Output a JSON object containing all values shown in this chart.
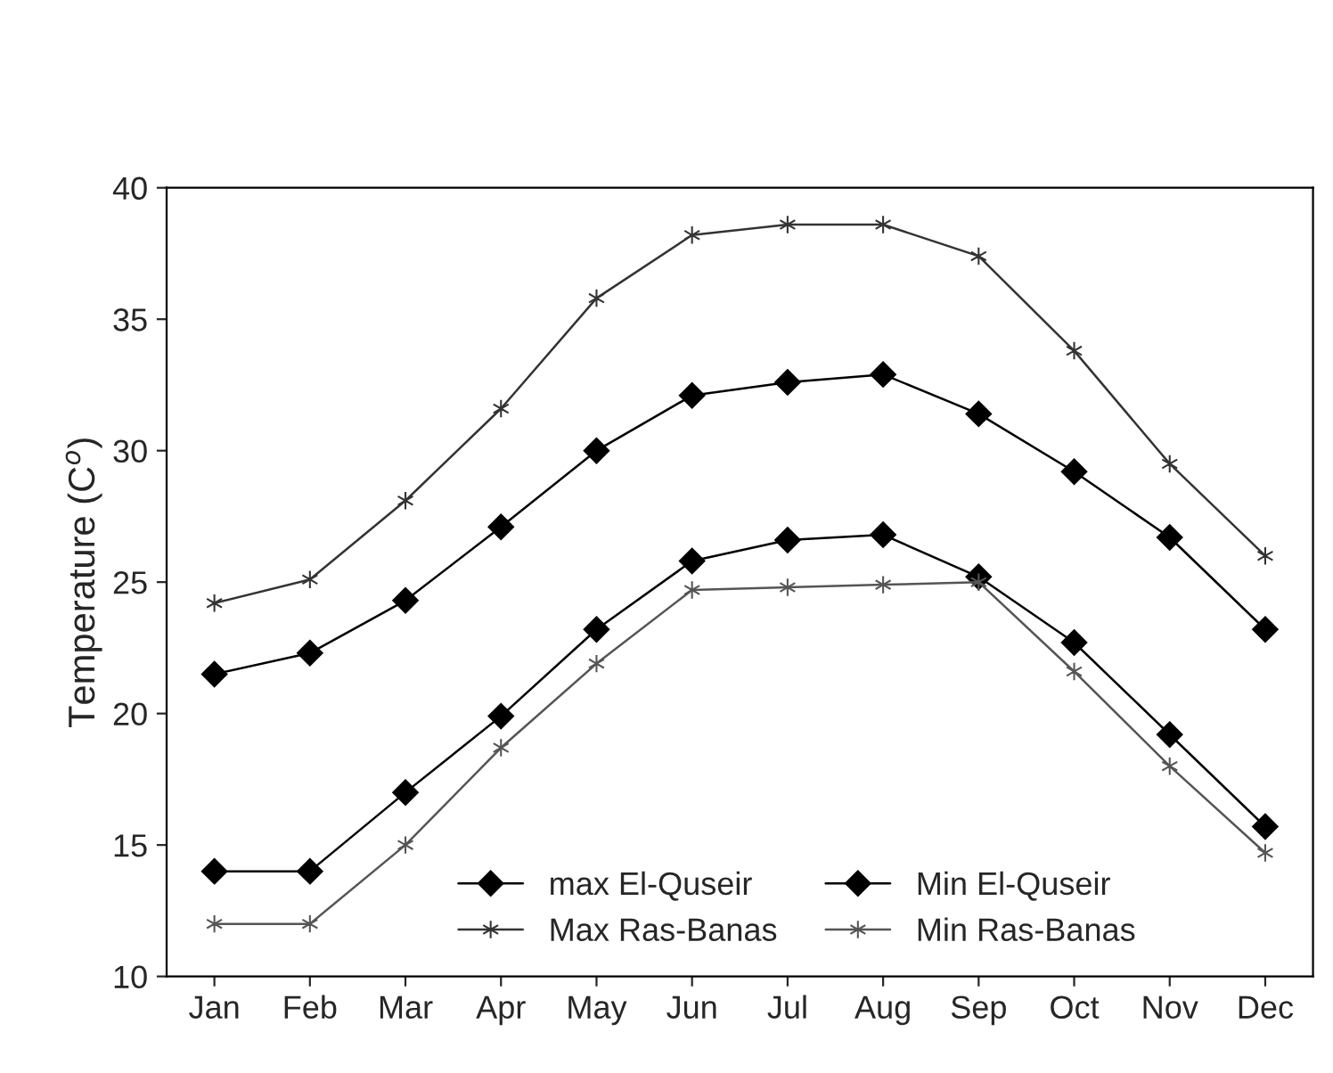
{
  "chart_data": {
    "type": "line",
    "ylabel": "Temperature (C$^{o}$)",
    "categories": [
      "Jan",
      "Feb",
      "Mar",
      "Apr",
      "May",
      "Jun",
      "Jul",
      "Aug",
      "Sep",
      "Oct",
      "Nov",
      "Dec"
    ],
    "series": [
      {
        "name": "max El-Quseir",
        "color": "#000000",
        "marker": "diamond",
        "values": [
          21.5,
          22.3,
          24.3,
          27.1,
          30.0,
          32.1,
          32.6,
          32.9,
          31.4,
          29.2,
          26.7,
          23.2
        ]
      },
      {
        "name": "Min El-Quseir",
        "color": "#000000",
        "marker": "diamond",
        "values": [
          14.0,
          14.0,
          17.0,
          19.9,
          23.2,
          25.8,
          26.6,
          26.8,
          25.2,
          22.7,
          19.2,
          15.7
        ]
      },
      {
        "name": "Max Ras-Banas",
        "color": "#333333",
        "marker": "cross",
        "values": [
          24.2,
          25.1,
          28.1,
          31.6,
          35.8,
          38.2,
          38.6,
          38.6,
          37.4,
          33.8,
          29.5,
          26.0
        ]
      },
      {
        "name": "Min Ras-Banas",
        "color": "#555555",
        "marker": "cross",
        "values": [
          12.0,
          12.0,
          15.0,
          18.7,
          21.9,
          24.7,
          24.8,
          24.9,
          25.0,
          21.6,
          18.0,
          14.7
        ]
      }
    ],
    "ylim": [
      10,
      40
    ],
    "yticks": [
      10,
      15,
      20,
      25,
      30,
      35,
      40
    ],
    "grid": false,
    "legend": "bottom",
    "line_style": "solid"
  }
}
